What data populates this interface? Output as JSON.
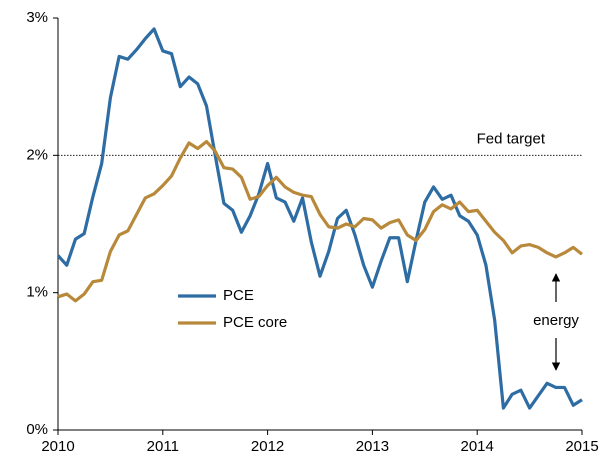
{
  "chart_data": {
    "type": "line",
    "categories": [
      "2010",
      null,
      null,
      null,
      null,
      null,
      null,
      null,
      null,
      null,
      null,
      null,
      "2011",
      null,
      null,
      null,
      null,
      null,
      null,
      null,
      null,
      null,
      null,
      null,
      "2012",
      null,
      null,
      null,
      null,
      null,
      null,
      null,
      null,
      null,
      null,
      null,
      "2013",
      null,
      null,
      null,
      null,
      null,
      null,
      null,
      null,
      null,
      null,
      null,
      "2014",
      null,
      null,
      null,
      null,
      null,
      null,
      null,
      null,
      null,
      null,
      null,
      "2015"
    ],
    "series": [
      {
        "name": "PCE",
        "color": "#2e6ca4",
        "values": [
          1.27,
          1.2,
          1.39,
          1.43,
          1.7,
          1.94,
          2.42,
          2.72,
          2.7,
          2.77,
          2.85,
          2.92,
          2.76,
          2.74,
          2.5,
          2.57,
          2.52,
          2.36,
          2.0,
          1.65,
          1.6,
          1.44,
          1.56,
          1.72,
          1.94,
          1.69,
          1.66,
          1.52,
          1.69,
          1.37,
          1.12,
          1.3,
          1.54,
          1.6,
          1.42,
          1.2,
          1.04,
          1.23,
          1.4,
          1.4,
          1.08,
          1.38,
          1.66,
          1.77,
          1.68,
          1.71,
          1.56,
          1.52,
          1.42,
          1.2,
          0.8,
          0.16,
          0.26,
          0.29,
          0.16,
          0.25,
          0.34,
          0.31,
          0.31,
          0.18,
          0.22
        ]
      },
      {
        "name": "PCE core",
        "color": "#b8893a",
        "values": [
          0.97,
          0.99,
          0.94,
          0.99,
          1.08,
          1.09,
          1.3,
          1.42,
          1.45,
          1.57,
          1.69,
          1.72,
          1.78,
          1.85,
          1.98,
          2.09,
          2.05,
          2.1,
          2.03,
          1.91,
          1.9,
          1.84,
          1.68,
          1.7,
          1.78,
          1.84,
          1.77,
          1.73,
          1.71,
          1.7,
          1.57,
          1.48,
          1.47,
          1.5,
          1.48,
          1.54,
          1.53,
          1.47,
          1.51,
          1.53,
          1.42,
          1.38,
          1.46,
          1.59,
          1.64,
          1.61,
          1.66,
          1.59,
          1.6,
          1.52,
          1.44,
          1.38,
          1.29,
          1.34,
          1.35,
          1.33,
          1.29,
          1.26,
          1.29,
          1.33,
          1.28
        ]
      }
    ],
    "ylim": [
      0,
      3
    ],
    "yticks": [
      {
        "value": 0,
        "label": "0%"
      },
      {
        "value": 1,
        "label": "1%"
      },
      {
        "value": 2,
        "label": "2%"
      },
      {
        "value": 3,
        "label": "3%"
      }
    ],
    "reference_line": {
      "value": 2,
      "label": "Fed target"
    },
    "annotation": "energy",
    "legend": "center-left",
    "grid": false
  }
}
